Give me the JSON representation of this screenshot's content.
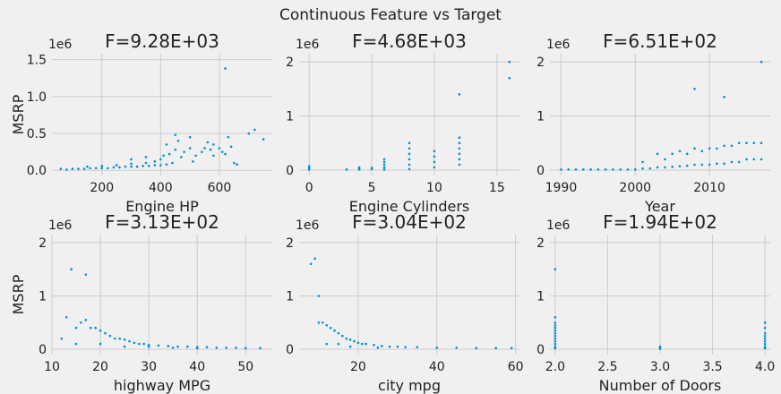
{
  "figure": {
    "suptitle": "Continuous Feature vs Target",
    "point_color": "#008fd5",
    "background": "#f0f0f0",
    "grid_color": "#cbcbcb"
  },
  "chart_data": [
    {
      "type": "scatter",
      "title": "F=9.28E+03",
      "xlabel": "Engine HP",
      "ylabel": "MSRP",
      "y_offset_label": "1e6",
      "xlim": [
        30,
        780
      ],
      "ylim": [
        -0.07,
        1.58
      ],
      "xticks": [
        200,
        400,
        600
      ],
      "yticks": [
        0.0,
        0.5,
        1.0,
        1.5
      ],
      "ytick_labels": [
        "0.0",
        "0.5",
        "1.0",
        "1.5"
      ],
      "grid": true,
      "points": [
        [
          60,
          0.02
        ],
        [
          80,
          0.01
        ],
        [
          100,
          0.02
        ],
        [
          120,
          0.02
        ],
        [
          140,
          0.02
        ],
        [
          160,
          0.03
        ],
        [
          180,
          0.03
        ],
        [
          200,
          0.03
        ],
        [
          220,
          0.03
        ],
        [
          240,
          0.04
        ],
        [
          260,
          0.04
        ],
        [
          280,
          0.05
        ],
        [
          300,
          0.05
        ],
        [
          320,
          0.05
        ],
        [
          340,
          0.06
        ],
        [
          360,
          0.06
        ],
        [
          380,
          0.07
        ],
        [
          400,
          0.07
        ],
        [
          420,
          0.08
        ],
        [
          440,
          0.1
        ],
        [
          150,
          0.05
        ],
        [
          200,
          0.06
        ],
        [
          250,
          0.07
        ],
        [
          300,
          0.09
        ],
        [
          350,
          0.1
        ],
        [
          380,
          0.12
        ],
        [
          400,
          0.15
        ],
        [
          410,
          0.2
        ],
        [
          420,
          0.35
        ],
        [
          430,
          0.22
        ],
        [
          450,
          0.28
        ],
        [
          460,
          0.4
        ],
        [
          470,
          0.18
        ],
        [
          480,
          0.25
        ],
        [
          500,
          0.3
        ],
        [
          510,
          0.12
        ],
        [
          520,
          0.2
        ],
        [
          540,
          0.25
        ],
        [
          550,
          0.3
        ],
        [
          560,
          0.38
        ],
        [
          570,
          0.28
        ],
        [
          580,
          0.2
        ],
        [
          600,
          0.3
        ],
        [
          610,
          0.25
        ],
        [
          620,
          0.22
        ],
        [
          630,
          0.45
        ],
        [
          640,
          0.32
        ],
        [
          650,
          0.1
        ],
        [
          660,
          0.08
        ],
        [
          700,
          0.5
        ],
        [
          720,
          0.55
        ],
        [
          750,
          0.42
        ],
        [
          450,
          0.48
        ],
        [
          500,
          0.45
        ],
        [
          620,
          1.38
        ],
        [
          580,
          0.35
        ],
        [
          300,
          0.15
        ],
        [
          350,
          0.18
        ]
      ]
    },
    {
      "type": "scatter",
      "title": "F=4.68E+03",
      "xlabel": "Engine Cylinders",
      "ylabel": "",
      "y_offset_label": "1e6",
      "xlim": [
        -0.8,
        16.8
      ],
      "ylim": [
        -0.1,
        2.15
      ],
      "xticks": [
        0,
        5,
        10,
        15
      ],
      "yticks": [
        0,
        1,
        2
      ],
      "ytick_labels": [
        "0",
        "1",
        "2"
      ],
      "grid": true,
      "points": [
        [
          0,
          0.01
        ],
        [
          0,
          0.04
        ],
        [
          0,
          0.07
        ],
        [
          3,
          0.01
        ],
        [
          4,
          0.01
        ],
        [
          4,
          0.03
        ],
        [
          4,
          0.05
        ],
        [
          5,
          0.02
        ],
        [
          5,
          0.04
        ],
        [
          6,
          0.01
        ],
        [
          6,
          0.05
        ],
        [
          6,
          0.1
        ],
        [
          6,
          0.15
        ],
        [
          6,
          0.2
        ],
        [
          8,
          0.02
        ],
        [
          8,
          0.1
        ],
        [
          8,
          0.2
        ],
        [
          8,
          0.3
        ],
        [
          8,
          0.4
        ],
        [
          8,
          0.5
        ],
        [
          10,
          0.05
        ],
        [
          10,
          0.15
        ],
        [
          10,
          0.25
        ],
        [
          10,
          0.35
        ],
        [
          12,
          0.1
        ],
        [
          12,
          0.2
        ],
        [
          12,
          0.3
        ],
        [
          12,
          0.4
        ],
        [
          12,
          0.5
        ],
        [
          12,
          0.6
        ],
        [
          12,
          1.4
        ],
        [
          16,
          1.7
        ],
        [
          16,
          2.0
        ]
      ]
    },
    {
      "type": "scatter",
      "title": "F=6.51E+02",
      "xlabel": "Year",
      "ylabel": "",
      "y_offset_label": "1e6",
      "xlim": [
        1988.5,
        2018.2
      ],
      "ylim": [
        -0.1,
        2.15
      ],
      "xticks": [
        1990,
        2000,
        2010
      ],
      "yticks": [
        0,
        1,
        2
      ],
      "ytick_labels": [
        "0",
        "1",
        "2"
      ],
      "grid": true,
      "points": [
        [
          1990,
          0.01
        ],
        [
          1991,
          0.01
        ],
        [
          1992,
          0.01
        ],
        [
          1993,
          0.01
        ],
        [
          1994,
          0.01
        ],
        [
          1995,
          0.01
        ],
        [
          1996,
          0.01
        ],
        [
          1997,
          0.01
        ],
        [
          1998,
          0.01
        ],
        [
          1999,
          0.01
        ],
        [
          2000,
          0.01
        ],
        [
          2001,
          0.03
        ],
        [
          2001,
          0.15
        ],
        [
          2002,
          0.03
        ],
        [
          2003,
          0.05
        ],
        [
          2003,
          0.3
        ],
        [
          2004,
          0.05
        ],
        [
          2004,
          0.2
        ],
        [
          2005,
          0.06
        ],
        [
          2005,
          0.3
        ],
        [
          2006,
          0.07
        ],
        [
          2006,
          0.35
        ],
        [
          2007,
          0.08
        ],
        [
          2007,
          0.3
        ],
        [
          2008,
          0.1
        ],
        [
          2008,
          0.4
        ],
        [
          2008,
          1.5
        ],
        [
          2009,
          0.1
        ],
        [
          2009,
          0.35
        ],
        [
          2010,
          0.1
        ],
        [
          2010,
          0.4
        ],
        [
          2011,
          0.12
        ],
        [
          2011,
          0.4
        ],
        [
          2012,
          0.12
        ],
        [
          2012,
          0.45
        ],
        [
          2012,
          1.35
        ],
        [
          2013,
          0.15
        ],
        [
          2013,
          0.45
        ],
        [
          2014,
          0.15
        ],
        [
          2014,
          0.5
        ],
        [
          2015,
          0.2
        ],
        [
          2015,
          0.5
        ],
        [
          2016,
          0.2
        ],
        [
          2016,
          0.5
        ],
        [
          2017,
          0.2
        ],
        [
          2017,
          0.5
        ],
        [
          2017,
          2.0
        ]
      ]
    },
    {
      "type": "scatter",
      "title": "F=3.13E+02",
      "xlabel": "highway MPG",
      "ylabel": "MSRP",
      "y_offset_label": "1e6",
      "xlim": [
        10,
        55.5
      ],
      "ylim": [
        -0.1,
        2.15
      ],
      "xticks": [
        10,
        20,
        30,
        40,
        50
      ],
      "yticks": [
        0,
        1,
        2
      ],
      "ytick_labels": [
        "0",
        "1",
        "2"
      ],
      "grid": true,
      "points": [
        [
          12,
          0.2
        ],
        [
          13,
          0.6
        ],
        [
          14,
          1.5
        ],
        [
          15,
          0.4
        ],
        [
          16,
          0.5
        ],
        [
          17,
          0.55
        ],
        [
          17,
          1.4
        ],
        [
          18,
          0.4
        ],
        [
          19,
          0.4
        ],
        [
          20,
          0.35
        ],
        [
          21,
          0.3
        ],
        [
          22,
          0.25
        ],
        [
          23,
          0.2
        ],
        [
          24,
          0.2
        ],
        [
          25,
          0.18
        ],
        [
          26,
          0.15
        ],
        [
          27,
          0.12
        ],
        [
          28,
          0.1
        ],
        [
          29,
          0.1
        ],
        [
          30,
          0.08
        ],
        [
          32,
          0.07
        ],
        [
          34,
          0.06
        ],
        [
          36,
          0.05
        ],
        [
          38,
          0.05
        ],
        [
          40,
          0.04
        ],
        [
          42,
          0.04
        ],
        [
          44,
          0.03
        ],
        [
          46,
          0.03
        ],
        [
          48,
          0.03
        ],
        [
          50,
          0.02
        ],
        [
          53,
          0.02
        ],
        [
          15,
          0.1
        ],
        [
          20,
          0.1
        ],
        [
          25,
          0.05
        ],
        [
          30,
          0.05
        ],
        [
          35,
          0.03
        ],
        [
          40,
          0.02
        ]
      ]
    },
    {
      "type": "scatter",
      "title": "F=3.04E+02",
      "xlabel": "city mpg",
      "ylabel": "",
      "y_offset_label": "1e6",
      "xlim": [
        5,
        61
      ],
      "ylim": [
        -0.1,
        2.15
      ],
      "xticks": [
        20,
        40,
        60
      ],
      "yticks": [
        0,
        1,
        2
      ],
      "ytick_labels": [
        "0",
        "1",
        "2"
      ],
      "grid": true,
      "points": [
        [
          8,
          1.6
        ],
        [
          9,
          1.7
        ],
        [
          10,
          0.5
        ],
        [
          10,
          1.0
        ],
        [
          11,
          0.5
        ],
        [
          12,
          0.45
        ],
        [
          13,
          0.4
        ],
        [
          14,
          0.35
        ],
        [
          15,
          0.3
        ],
        [
          16,
          0.25
        ],
        [
          17,
          0.2
        ],
        [
          18,
          0.18
        ],
        [
          19,
          0.15
        ],
        [
          20,
          0.12
        ],
        [
          21,
          0.1
        ],
        [
          22,
          0.1
        ],
        [
          24,
          0.08
        ],
        [
          26,
          0.06
        ],
        [
          28,
          0.05
        ],
        [
          30,
          0.05
        ],
        [
          32,
          0.04
        ],
        [
          35,
          0.04
        ],
        [
          40,
          0.03
        ],
        [
          45,
          0.03
        ],
        [
          50,
          0.02
        ],
        [
          55,
          0.02
        ],
        [
          59,
          0.02
        ],
        [
          12,
          0.1
        ],
        [
          15,
          0.1
        ],
        [
          18,
          0.05
        ],
        [
          25,
          0.03
        ]
      ]
    },
    {
      "type": "scatter",
      "title": "F=1.94E+02",
      "xlabel": "Number of Doors",
      "ylabel": "",
      "y_offset_label": "1e6",
      "xlim": [
        1.95,
        4.05
      ],
      "ylim": [
        -0.1,
        2.15
      ],
      "xticks": [
        2.0,
        2.5,
        3.0,
        3.5,
        4.0
      ],
      "yticks": [
        0,
        1,
        2
      ],
      "ytick_labels": [
        "0",
        "1",
        "2"
      ],
      "xtick_labels": [
        "2.0",
        "2.5",
        "3.0",
        "3.5",
        "4.0"
      ],
      "grid": true,
      "points": [
        [
          2,
          0.02
        ],
        [
          2,
          0.05
        ],
        [
          2,
          0.1
        ],
        [
          2,
          0.15
        ],
        [
          2,
          0.2
        ],
        [
          2,
          0.25
        ],
        [
          2,
          0.3
        ],
        [
          2,
          0.35
        ],
        [
          2,
          0.4
        ],
        [
          2,
          0.45
        ],
        [
          2,
          0.5
        ],
        [
          2,
          0.6
        ],
        [
          2,
          1.5
        ],
        [
          3,
          0.01
        ],
        [
          3,
          0.03
        ],
        [
          3,
          0.05
        ],
        [
          4,
          0.02
        ],
        [
          4,
          0.05
        ],
        [
          4,
          0.1
        ],
        [
          4,
          0.15
        ],
        [
          4,
          0.2
        ],
        [
          4,
          0.25
        ],
        [
          4,
          0.3
        ],
        [
          4,
          0.4
        ],
        [
          4,
          0.5
        ]
      ]
    }
  ]
}
